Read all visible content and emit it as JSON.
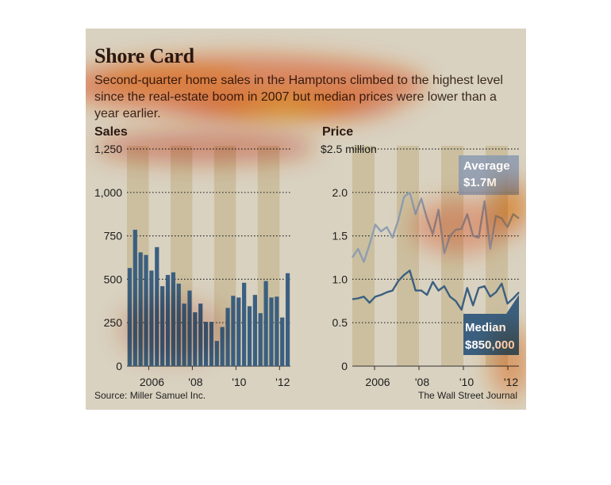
{
  "title": "Shore Card",
  "subtitle": "Second-quarter home sales in the Hamptons climbed to the highest level since the real-estate boom in 2007 but median prices were lower than a year earlier.",
  "source": "Source: Miller Samuel Inc.",
  "credit": "The Wall Street Journal",
  "colors": {
    "background": "#d9d2c0",
    "band": "#cbbf9f",
    "bars": "#3b5f80",
    "average_line": "#8e9eb0",
    "median_line": "#3b5f80",
    "heat": "#ff6a00"
  },
  "chart_data": [
    {
      "type": "bar",
      "title": "Sales",
      "ylim": [
        0,
        1250
      ],
      "yticks": [
        "0",
        "250",
        "500",
        "750",
        "1,000",
        "1,250"
      ],
      "ytick_values": [
        0,
        250,
        500,
        750,
        1000,
        1250
      ],
      "xtick_labels": [
        "2006",
        "'08",
        "'10",
        "'12"
      ],
      "quarters": [
        "2005 Q1",
        "2005 Q2",
        "2005 Q3",
        "2005 Q4",
        "2006 Q1",
        "2006 Q2",
        "2006 Q3",
        "2006 Q4",
        "2007 Q1",
        "2007 Q2",
        "2007 Q3",
        "2007 Q4",
        "2008 Q1",
        "2008 Q2",
        "2008 Q3",
        "2008 Q4",
        "2009 Q1",
        "2009 Q2",
        "2009 Q3",
        "2009 Q4",
        "2010 Q1",
        "2010 Q2",
        "2010 Q3",
        "2010 Q4",
        "2011 Q1",
        "2011 Q2",
        "2011 Q3",
        "2011 Q4",
        "2012 Q1",
        "2012 Q2"
      ],
      "values": [
        565,
        785,
        655,
        640,
        550,
        685,
        460,
        525,
        540,
        475,
        360,
        435,
        310,
        360,
        255,
        255,
        145,
        225,
        335,
        405,
        395,
        480,
        345,
        410,
        305,
        490,
        395,
        400,
        280,
        535
      ],
      "shaded_years": [
        2005,
        2007,
        2009,
        2011
      ],
      "grid": true
    },
    {
      "type": "line",
      "title": "Price",
      "ylim": [
        0,
        2.5
      ],
      "yticks": [
        "0",
        "0.5",
        "1.0",
        "1.5",
        "2.0",
        "$2.5 million"
      ],
      "ytick_values": [
        0,
        0.5,
        1.0,
        1.5,
        2.0,
        2.5
      ],
      "xtick_labels": [
        "2006",
        "'08",
        "'10",
        "'12"
      ],
      "quarters": [
        "2005 Q1",
        "2005 Q2",
        "2005 Q3",
        "2005 Q4",
        "2006 Q1",
        "2006 Q2",
        "2006 Q3",
        "2006 Q4",
        "2007 Q1",
        "2007 Q2",
        "2007 Q3",
        "2007 Q4",
        "2008 Q1",
        "2008 Q2",
        "2008 Q3",
        "2008 Q4",
        "2009 Q1",
        "2009 Q2",
        "2009 Q3",
        "2009 Q4",
        "2010 Q1",
        "2010 Q2",
        "2010 Q3",
        "2010 Q4",
        "2011 Q1",
        "2011 Q2",
        "2011 Q3",
        "2011 Q4",
        "2012 Q1",
        "2012 Q2"
      ],
      "series": [
        {
          "name": "Average",
          "label": "$1.7M",
          "values": [
            1.25,
            1.35,
            1.2,
            1.4,
            1.63,
            1.55,
            1.6,
            1.48,
            1.68,
            1.95,
            2.0,
            1.75,
            1.93,
            1.7,
            1.52,
            1.8,
            1.3,
            1.5,
            1.57,
            1.58,
            1.75,
            1.5,
            1.48,
            1.9,
            1.35,
            1.73,
            1.7,
            1.6,
            1.75,
            1.7
          ]
        },
        {
          "name": "Median",
          "label": "$850,000",
          "values": [
            0.77,
            0.78,
            0.8,
            0.73,
            0.8,
            0.82,
            0.85,
            0.87,
            0.98,
            1.05,
            1.1,
            0.87,
            0.87,
            0.82,
            0.97,
            0.87,
            0.92,
            0.8,
            0.75,
            0.65,
            0.9,
            0.7,
            0.9,
            0.92,
            0.8,
            0.85,
            0.95,
            0.72,
            0.78,
            0.85
          ]
        }
      ],
      "shaded_years": [
        2005,
        2007,
        2009,
        2011
      ],
      "grid": true
    }
  ]
}
